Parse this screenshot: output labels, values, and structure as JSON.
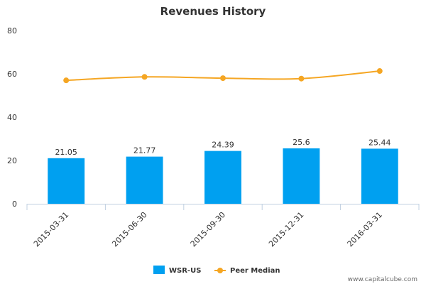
{
  "chart_data": {
    "type": "bar",
    "title": "Revenues History",
    "categories": [
      "2015-03-31",
      "2015-06-30",
      "2015-09-30",
      "2015-12-31",
      "2016-03-31"
    ],
    "series": [
      {
        "name": "WSR-US",
        "type": "bar",
        "values": [
          21.05,
          21.77,
          24.39,
          25.6,
          25.44
        ],
        "color": "#00a0f0",
        "data_labels": [
          "21.05",
          "21.77",
          "24.39",
          "25.6",
          "25.44"
        ]
      },
      {
        "name": "Peer Median",
        "type": "line",
        "values": [
          57,
          58.6,
          58,
          57.8,
          61.3
        ],
        "color": "#f5a623"
      }
    ],
    "yticks": [
      "0",
      "20",
      "40",
      "60",
      "80"
    ],
    "ylim": [
      0,
      80
    ],
    "grid": false,
    "legend": "bottom-center"
  },
  "credit": "www.capitalcube.com",
  "colors": {
    "axis": "#c0d0e0",
    "text": "#333333"
  }
}
